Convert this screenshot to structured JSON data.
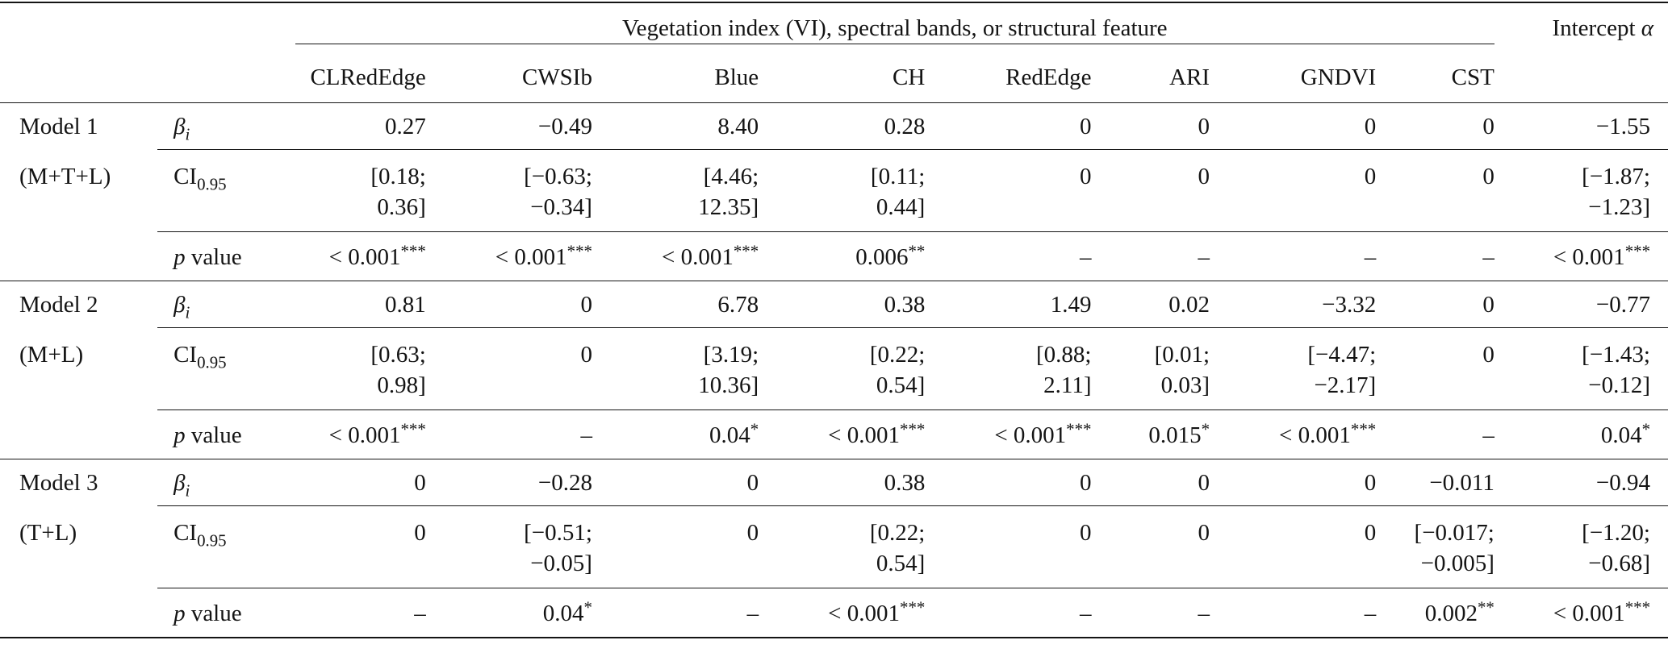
{
  "header": {
    "group_title": "Vegetation index (VI), spectral bands, or structural feature",
    "intercept_label": "Intercept α",
    "columns": [
      "CLRedEdge",
      "CWSIb",
      "Blue",
      "CH",
      "RedEdge",
      "ARI",
      "GNDVI",
      "CST"
    ]
  },
  "stat_labels": {
    "beta_symbol": "β",
    "beta_sub": "i",
    "ci": "CI",
    "ci_sub": "0.95",
    "p_italic": "p",
    "p_rest": " value"
  },
  "models": [
    {
      "name": "Model 1",
      "combo": "(M+T+L)",
      "beta": [
        "0.27",
        "−0.49",
        "8.40",
        "0.28",
        "0",
        "0",
        "0",
        "0",
        "−1.55"
      ],
      "ci": [
        [
          "[0.18;",
          "0.36]"
        ],
        [
          "[−0.63;",
          "−0.34]"
        ],
        [
          "[4.46;",
          "12.35]"
        ],
        [
          "[0.11;",
          "0.44]"
        ],
        [
          "0"
        ],
        [
          "0"
        ],
        [
          "0"
        ],
        [
          "0"
        ],
        [
          "[−1.87;",
          "−1.23]"
        ]
      ],
      "p": [
        {
          "v": "< 0.001",
          "s": "***"
        },
        {
          "v": "< 0.001",
          "s": "***"
        },
        {
          "v": "< 0.001",
          "s": "***"
        },
        {
          "v": "0.006",
          "s": "**"
        },
        {
          "v": "–",
          "s": ""
        },
        {
          "v": "–",
          "s": ""
        },
        {
          "v": "–",
          "s": ""
        },
        {
          "v": "–",
          "s": ""
        },
        {
          "v": "< 0.001",
          "s": "***"
        }
      ]
    },
    {
      "name": "Model 2",
      "combo": "(M+L)",
      "beta": [
        "0.81",
        "0",
        "6.78",
        "0.38",
        "1.49",
        "0.02",
        "−3.32",
        "0",
        "−0.77"
      ],
      "ci": [
        [
          "[0.63;",
          "0.98]"
        ],
        [
          "0"
        ],
        [
          "[3.19;",
          "10.36]"
        ],
        [
          "[0.22;",
          "0.54]"
        ],
        [
          "[0.88;",
          "2.11]"
        ],
        [
          "[0.01;",
          "0.03]"
        ],
        [
          "[−4.47;",
          "−2.17]"
        ],
        [
          "0"
        ],
        [
          "[−1.43;",
          "−0.12]"
        ]
      ],
      "p": [
        {
          "v": "< 0.001",
          "s": "***"
        },
        {
          "v": "–",
          "s": ""
        },
        {
          "v": "0.04",
          "s": "*"
        },
        {
          "v": "< 0.001",
          "s": "***"
        },
        {
          "v": "< 0.001",
          "s": "***"
        },
        {
          "v": "0.015",
          "s": "*"
        },
        {
          "v": "< 0.001",
          "s": "***"
        },
        {
          "v": "–",
          "s": ""
        },
        {
          "v": "0.04",
          "s": "*"
        }
      ]
    },
    {
      "name": "Model 3",
      "combo": "(T+L)",
      "beta": [
        "0",
        "−0.28",
        "0",
        "0.38",
        "0",
        "0",
        "0",
        "−0.011",
        "−0.94"
      ],
      "ci": [
        [
          "0"
        ],
        [
          "[−0.51;",
          "−0.05]"
        ],
        [
          "0"
        ],
        [
          "[0.22;",
          "0.54]"
        ],
        [
          "0"
        ],
        [
          "0"
        ],
        [
          "0"
        ],
        [
          "[−0.017;",
          "−0.005]"
        ],
        [
          "[−1.20;",
          "−0.68]"
        ]
      ],
      "p": [
        {
          "v": "–",
          "s": ""
        },
        {
          "v": "0.04",
          "s": "*"
        },
        {
          "v": "–",
          "s": ""
        },
        {
          "v": "< 0.001",
          "s": "***"
        },
        {
          "v": "–",
          "s": ""
        },
        {
          "v": "–",
          "s": ""
        },
        {
          "v": "–",
          "s": ""
        },
        {
          "v": "0.002",
          "s": "**"
        },
        {
          "v": "< 0.001",
          "s": "***"
        }
      ]
    }
  ]
}
